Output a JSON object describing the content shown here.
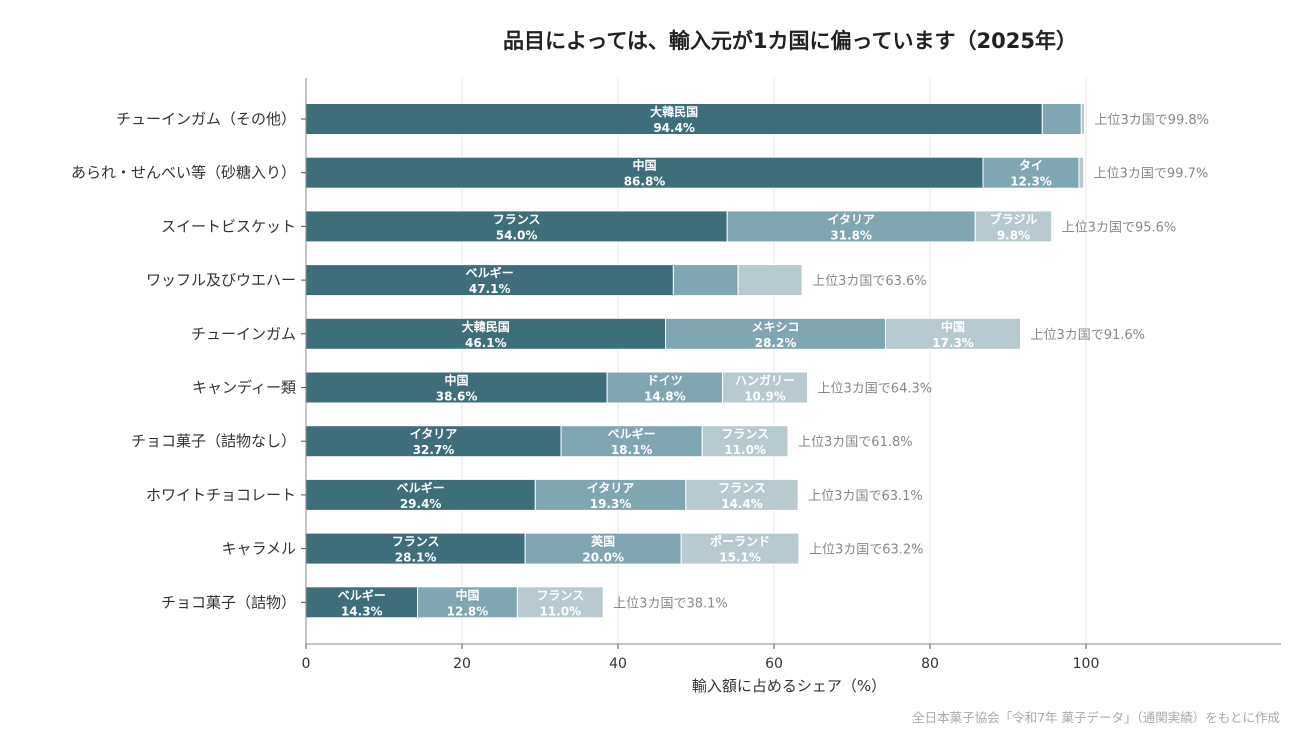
{
  "chart_data": {
    "type": "bar",
    "orientation": "horizontal",
    "stacked": true,
    "title": "品目によっては、輸入元が1カ国に偏っています（2025年）",
    "xlabel": "輸入額に占めるシェア（%）",
    "ylabel": "",
    "xlim": [
      0,
      125
    ],
    "xticks": [
      0,
      20,
      40,
      60,
      80,
      100
    ],
    "grid": "vertical",
    "source": "全日本菓子協会「令和7年 菓子データ」（通関実績）をもとに作成",
    "colors": [
      "#3f6e7b",
      "#80a6b1",
      "#b8cad0"
    ],
    "categories": [
      "チューインガム（その他）",
      "あられ・せんべい等（砂糖入り）",
      "スイートビスケット",
      "ワッフル及びウエハー",
      "チューインガム",
      "キャンディー類",
      "チョコ菓子（詰物なし）",
      "ホワイトチョコレート",
      "キャラメル",
      "チョコ菓子（詰物）"
    ],
    "rows": [
      {
        "segments": [
          {
            "country": "大韓民国",
            "value": 94.4,
            "label": "94.4%"
          },
          {
            "country": "",
            "value": 5.0,
            "label": ""
          },
          {
            "country": "",
            "value": 0.4,
            "label": ""
          }
        ],
        "total_label": "上位3カ国で99.8%"
      },
      {
        "segments": [
          {
            "country": "中国",
            "value": 86.8,
            "label": "86.8%"
          },
          {
            "country": "タイ",
            "value": 12.3,
            "label": "12.3%"
          },
          {
            "country": "",
            "value": 0.6,
            "label": ""
          }
        ],
        "total_label": "上位3カ国で99.7%"
      },
      {
        "segments": [
          {
            "country": "フランス",
            "value": 54.0,
            "label": "54.0%"
          },
          {
            "country": "イタリア",
            "value": 31.8,
            "label": "31.8%"
          },
          {
            "country": "ブラジル",
            "value": 9.8,
            "label": "9.8%"
          }
        ],
        "total_label": "上位3カ国で95.6%"
      },
      {
        "segments": [
          {
            "country": "ベルギー",
            "value": 47.1,
            "label": "47.1%"
          },
          {
            "country": "",
            "value": 8.3,
            "label": ""
          },
          {
            "country": "",
            "value": 8.2,
            "label": ""
          }
        ],
        "total_label": "上位3カ国で63.6%"
      },
      {
        "segments": [
          {
            "country": "大韓民国",
            "value": 46.1,
            "label": "46.1%"
          },
          {
            "country": "メキシコ",
            "value": 28.2,
            "label": "28.2%"
          },
          {
            "country": "中国",
            "value": 17.3,
            "label": "17.3%"
          }
        ],
        "total_label": "上位3カ国で91.6%"
      },
      {
        "segments": [
          {
            "country": "中国",
            "value": 38.6,
            "label": "38.6%"
          },
          {
            "country": "ドイツ",
            "value": 14.8,
            "label": "14.8%"
          },
          {
            "country": "ハンガリー",
            "value": 10.9,
            "label": "10.9%"
          }
        ],
        "total_label": "上位3カ国で64.3%"
      },
      {
        "segments": [
          {
            "country": "イタリア",
            "value": 32.7,
            "label": "32.7%"
          },
          {
            "country": "ベルギー",
            "value": 18.1,
            "label": "18.1%"
          },
          {
            "country": "フランス",
            "value": 11.0,
            "label": "11.0%"
          }
        ],
        "total_label": "上位3カ国で61.8%"
      },
      {
        "segments": [
          {
            "country": "ベルギー",
            "value": 29.4,
            "label": "29.4%"
          },
          {
            "country": "イタリア",
            "value": 19.3,
            "label": "19.3%"
          },
          {
            "country": "フランス",
            "value": 14.4,
            "label": "14.4%"
          }
        ],
        "total_label": "上位3カ国で63.1%"
      },
      {
        "segments": [
          {
            "country": "フランス",
            "value": 28.1,
            "label": "28.1%"
          },
          {
            "country": "英国",
            "value": 20.0,
            "label": "20.0%"
          },
          {
            "country": "ポーランド",
            "value": 15.1,
            "label": "15.1%"
          }
        ],
        "total_label": "上位3カ国で63.2%"
      },
      {
        "segments": [
          {
            "country": "ベルギー",
            "value": 14.3,
            "label": "14.3%"
          },
          {
            "country": "中国",
            "value": 12.8,
            "label": "12.8%"
          },
          {
            "country": "フランス",
            "value": 11.0,
            "label": "11.0%"
          }
        ],
        "total_label": "上位3カ国で38.1%"
      }
    ]
  }
}
